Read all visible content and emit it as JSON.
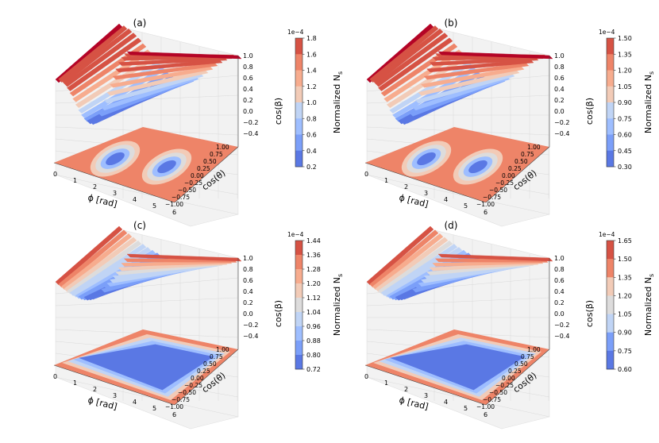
{
  "chart_data": [
    {
      "type": "surface3d",
      "panel_label": "(a)",
      "x_axis_label": "ϕ [rad]",
      "x_ticks": [
        "0",
        "1",
        "2",
        "3",
        "4",
        "5",
        "6"
      ],
      "y_axis_label": "cos(θ)",
      "y_ticks": [
        "1.00",
        "0.75",
        "0.50",
        "0.25",
        "0.00",
        "−0.25",
        "−0.50",
        "−0.75",
        "−1.00"
      ],
      "z_axis_label": "cos(β)",
      "z_ticks": [
        "1.0",
        "0.8",
        "0.6",
        "0.4",
        "0.2",
        "0.0",
        "−0.2",
        "−0.4"
      ],
      "colorbar_label": "Normalized N",
      "colorbar_label_sub": "s",
      "colorbar_exponent": "1e−4",
      "colorbar_ticks": [
        "1.8",
        "1.6",
        "1.4",
        "1.2",
        "1.0",
        "0.8",
        "0.6",
        "0.4",
        "0.2"
      ],
      "colorbar_range": [
        0.2,
        1.8
      ],
      "surface_shape": "two-dips",
      "floor_shape": "two-ovals"
    },
    {
      "type": "surface3d",
      "panel_label": "(b)",
      "x_axis_label": "ϕ [rad]",
      "x_ticks": [
        "0",
        "1",
        "2",
        "3",
        "4",
        "5",
        "6"
      ],
      "y_axis_label": "cos(θ)",
      "y_ticks": [
        "1.00",
        "0.75",
        "0.50",
        "0.25",
        "0.00",
        "−0.25",
        "−0.50",
        "−0.75",
        "−1.00"
      ],
      "z_axis_label": "cos(β)",
      "z_ticks": [
        "1.0",
        "0.8",
        "0.6",
        "0.4",
        "0.2",
        "0.0",
        "−0.2",
        "−0.4"
      ],
      "colorbar_label": "Normalized N",
      "colorbar_label_sub": "s",
      "colorbar_exponent": "1e−4",
      "colorbar_ticks": [
        "1.50",
        "1.35",
        "1.20",
        "1.05",
        "0.90",
        "0.75",
        "0.60",
        "0.45",
        "0.30"
      ],
      "colorbar_range": [
        0.3,
        1.5
      ],
      "surface_shape": "two-dips",
      "floor_shape": "two-ovals"
    },
    {
      "type": "surface3d",
      "panel_label": "(c)",
      "x_axis_label": "ϕ [rad]",
      "x_ticks": [
        "0",
        "1",
        "2",
        "3",
        "4",
        "5",
        "6"
      ],
      "y_axis_label": "cos(θ)",
      "y_ticks": [
        "1.00",
        "0.75",
        "0.50",
        "0.25",
        "0.00",
        "−0.25",
        "−0.50",
        "−0.75",
        "−1.00"
      ],
      "z_axis_label": "cos(β)",
      "z_ticks": [
        "1.0",
        "0.8",
        "0.6",
        "0.4",
        "0.2",
        "0.0",
        "−0.2",
        "−0.4"
      ],
      "colorbar_label": "Normalized N",
      "colorbar_label_sub": "s",
      "colorbar_exponent": "1e−4",
      "colorbar_ticks": [
        "1.44",
        "1.36",
        "1.28",
        "1.20",
        "1.12",
        "1.04",
        "0.96",
        "0.88",
        "0.80",
        "0.72"
      ],
      "colorbar_range": [
        0.72,
        1.44
      ],
      "surface_shape": "trough",
      "floor_shape": "band"
    },
    {
      "type": "surface3d",
      "panel_label": "(d)",
      "x_axis_label": "ϕ [rad]",
      "x_ticks": [
        "0",
        "1",
        "2",
        "3",
        "4",
        "5",
        "6"
      ],
      "y_axis_label": "cos(θ)",
      "y_ticks": [
        "1.00",
        "0.75",
        "0.50",
        "0.25",
        "0.00",
        "−0.25",
        "−0.50",
        "−0.75",
        "−1.00"
      ],
      "z_axis_label": "cos(β)",
      "z_ticks": [
        "1.0",
        "0.8",
        "0.6",
        "0.4",
        "0.2",
        "0.0",
        "−0.2",
        "−0.4"
      ],
      "colorbar_label": "Normalized N",
      "colorbar_label_sub": "s",
      "colorbar_exponent": "1e−4",
      "colorbar_ticks": [
        "1.65",
        "1.50",
        "1.35",
        "1.20",
        "1.05",
        "0.90",
        "0.75",
        "0.60"
      ],
      "colorbar_range": [
        0.6,
        1.65
      ],
      "surface_shape": "trough",
      "floor_shape": "band"
    }
  ],
  "colors": {
    "map": [
      "#3b4cc0",
      "#5a78e4",
      "#7b9ff9",
      "#9ebeff",
      "#c0d4f5",
      "#dddcdc",
      "#f2cbb7",
      "#f7ac8e",
      "#ee8468",
      "#d65244",
      "#b40426"
    ],
    "pane": "#f2f2f2",
    "grid": "#d9d9d9",
    "axis": "#444444"
  }
}
